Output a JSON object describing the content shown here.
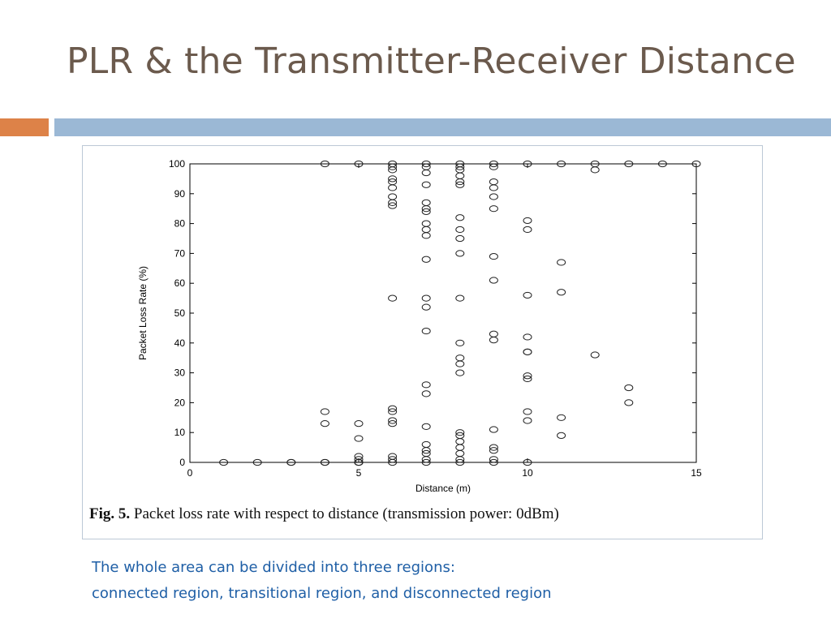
{
  "slide": {
    "title": "PLR & the Transmitter-Receiver Distance",
    "notes": [
      "The whole area can be divided into three regions:",
      "connected region, transitional region, and disconnected region"
    ],
    "colors": {
      "title": "#6b5a4d",
      "accent_orange": "#dd8248",
      "accent_blue": "#9bb8d5",
      "notes_text": "#1f5fa6"
    }
  },
  "figure": {
    "caption_label": "Fig. 5.",
    "caption_text": " Packet loss rate with respect to distance (transmission power: 0dBm)"
  },
  "chart_data": {
    "type": "scatter",
    "xlabel": "Distance (m)",
    "ylabel": "Packet Loss Rate (%)",
    "xlim": [
      0,
      15
    ],
    "ylim": [
      0,
      100
    ],
    "xticks": [
      0,
      5,
      10,
      15
    ],
    "yticks": [
      0,
      10,
      20,
      30,
      40,
      50,
      60,
      70,
      80,
      90,
      100
    ],
    "grid": false,
    "marker": "open-circle",
    "points": [
      [
        1,
        0
      ],
      [
        2,
        0
      ],
      [
        3,
        0
      ],
      [
        3,
        0
      ],
      [
        4,
        100
      ],
      [
        4,
        0
      ],
      [
        4,
        0
      ],
      [
        4,
        17
      ],
      [
        4,
        13
      ],
      [
        5,
        100
      ],
      [
        5,
        13
      ],
      [
        5,
        8
      ],
      [
        5,
        2
      ],
      [
        5,
        1
      ],
      [
        5,
        0
      ],
      [
        5,
        0
      ],
      [
        5,
        0
      ],
      [
        6,
        100
      ],
      [
        6,
        99
      ],
      [
        6,
        98
      ],
      [
        6,
        95
      ],
      [
        6,
        94
      ],
      [
        6,
        92
      ],
      [
        6,
        89
      ],
      [
        6,
        87
      ],
      [
        6,
        86
      ],
      [
        6,
        55
      ],
      [
        6,
        18
      ],
      [
        6,
        17
      ],
      [
        6,
        14
      ],
      [
        6,
        13
      ],
      [
        6,
        2
      ],
      [
        6,
        1
      ],
      [
        6,
        0
      ],
      [
        7,
        100
      ],
      [
        7,
        99
      ],
      [
        7,
        97
      ],
      [
        7,
        93
      ],
      [
        7,
        87
      ],
      [
        7,
        85
      ],
      [
        7,
        84
      ],
      [
        7,
        80
      ],
      [
        7,
        78
      ],
      [
        7,
        76
      ],
      [
        7,
        68
      ],
      [
        7,
        55
      ],
      [
        7,
        52
      ],
      [
        7,
        44
      ],
      [
        7,
        26
      ],
      [
        7,
        23
      ],
      [
        7,
        12
      ],
      [
        7,
        6
      ],
      [
        7,
        4
      ],
      [
        7,
        3
      ],
      [
        7,
        1
      ],
      [
        7,
        0
      ],
      [
        8,
        100
      ],
      [
        8,
        99
      ],
      [
        8,
        98
      ],
      [
        8,
        96
      ],
      [
        8,
        94
      ],
      [
        8,
        93
      ],
      [
        8,
        82
      ],
      [
        8,
        78
      ],
      [
        8,
        75
      ],
      [
        8,
        70
      ],
      [
        8,
        55
      ],
      [
        8,
        40
      ],
      [
        8,
        35
      ],
      [
        8,
        33
      ],
      [
        8,
        30
      ],
      [
        8,
        10
      ],
      [
        8,
        9
      ],
      [
        8,
        7
      ],
      [
        8,
        5
      ],
      [
        8,
        3
      ],
      [
        8,
        1
      ],
      [
        8,
        0
      ],
      [
        9,
        100
      ],
      [
        9,
        99
      ],
      [
        9,
        94
      ],
      [
        9,
        92
      ],
      [
        9,
        89
      ],
      [
        9,
        85
      ],
      [
        9,
        69
      ],
      [
        9,
        61
      ],
      [
        9,
        43
      ],
      [
        9,
        41
      ],
      [
        9,
        11
      ],
      [
        9,
        5
      ],
      [
        9,
        4
      ],
      [
        9,
        1
      ],
      [
        9,
        0
      ],
      [
        10,
        100
      ],
      [
        10,
        81
      ],
      [
        10,
        78
      ],
      [
        10,
        56
      ],
      [
        10,
        42
      ],
      [
        10,
        37
      ],
      [
        10,
        37
      ],
      [
        10,
        29
      ],
      [
        10,
        28
      ],
      [
        10,
        17
      ],
      [
        10,
        14
      ],
      [
        10,
        0
      ],
      [
        11,
        100
      ],
      [
        11,
        67
      ],
      [
        11,
        57
      ],
      [
        11,
        15
      ],
      [
        11,
        9
      ],
      [
        12,
        100
      ],
      [
        12,
        98
      ],
      [
        12,
        36
      ],
      [
        13,
        100
      ],
      [
        13,
        25
      ],
      [
        13,
        20
      ],
      [
        14,
        100
      ],
      [
        15,
        100
      ]
    ]
  }
}
